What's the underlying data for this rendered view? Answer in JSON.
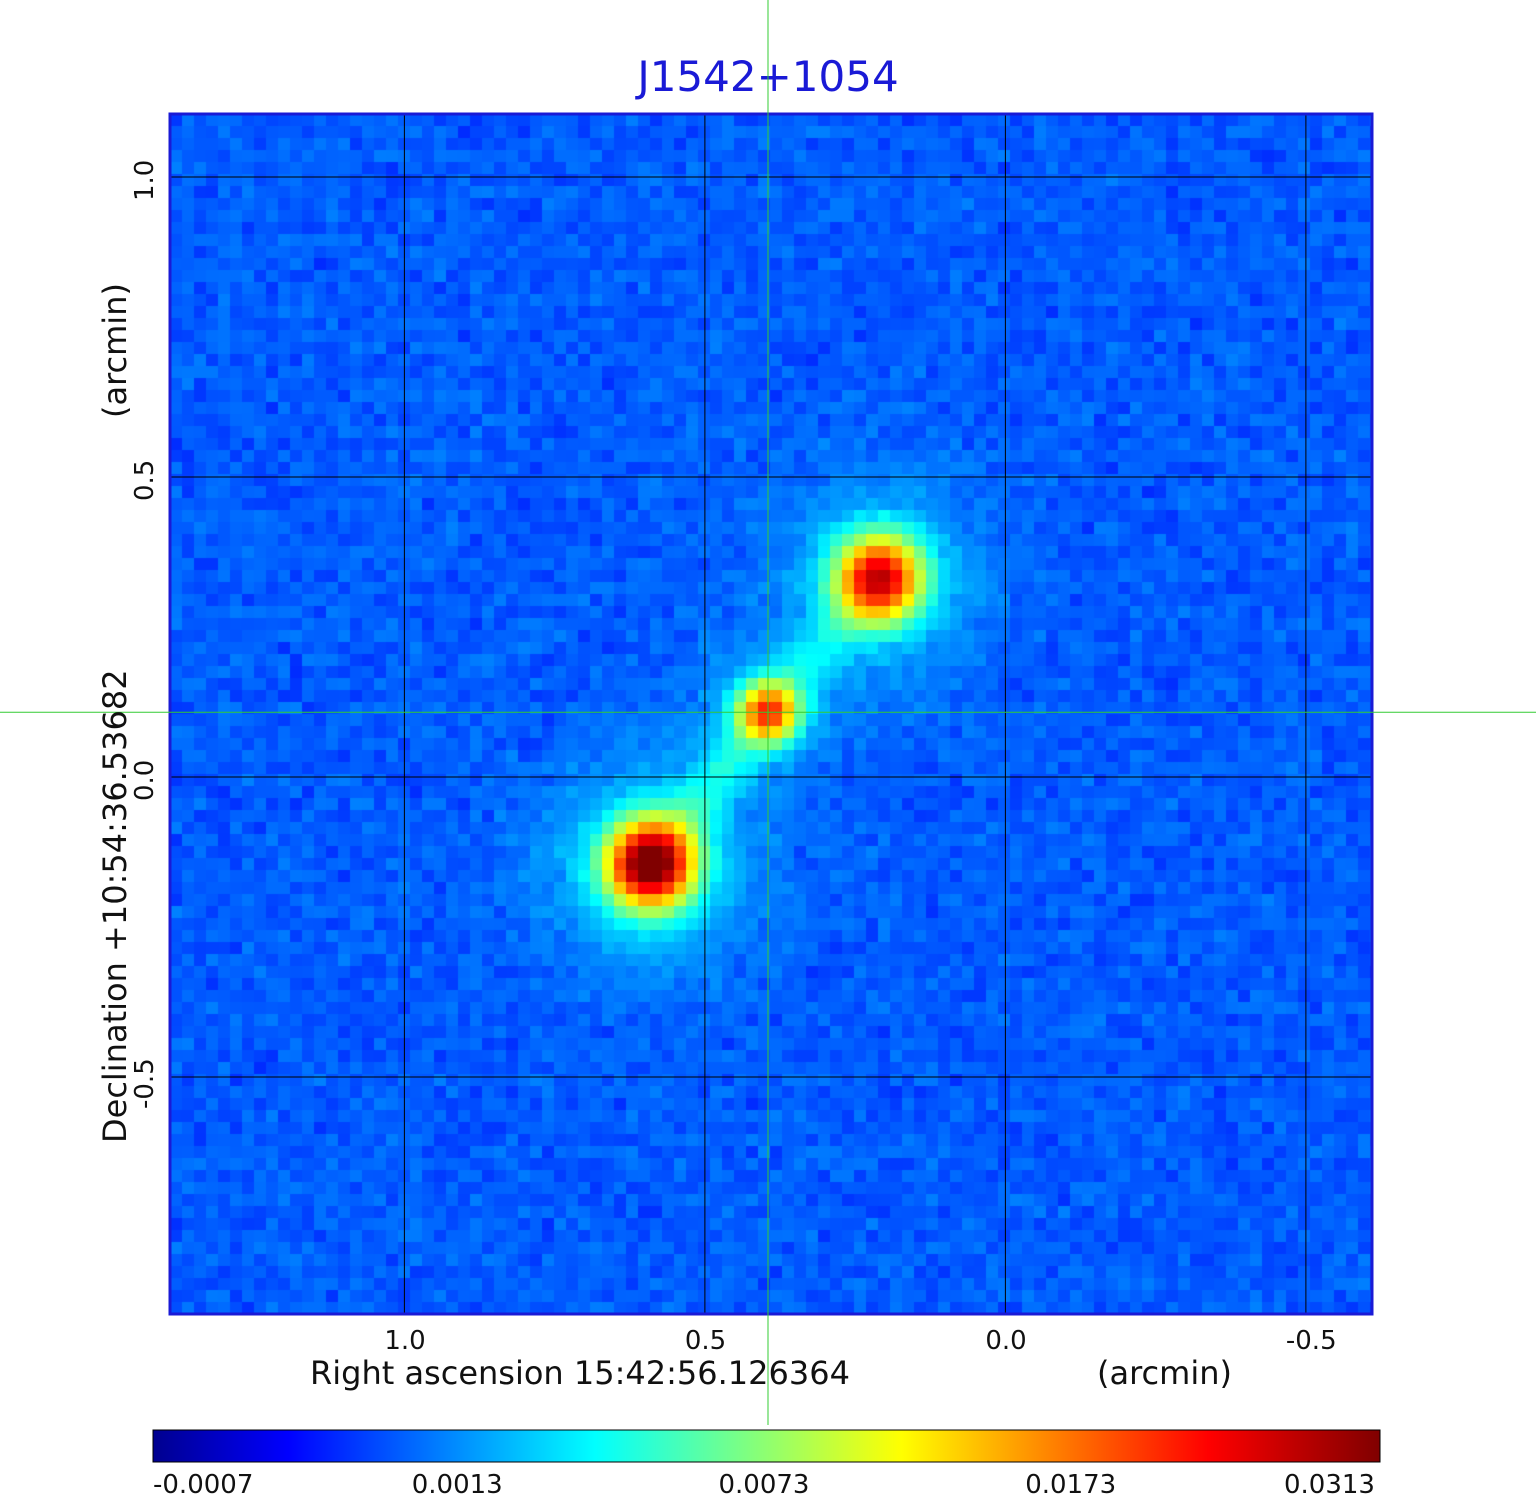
{
  "chart_data": {
    "type": "heatmap",
    "title": "J1542+1054",
    "xlabel": "Right ascension  15:42:56.126364",
    "xlabel_unit": "(arcmin)",
    "ylabel": "Declination  +10:54:36.53682",
    "ylabel_unit": "(arcmin)",
    "x_axis_reversed": true,
    "xlim": [
      1.39,
      -0.61
    ],
    "ylim": [
      -0.895,
      1.105
    ],
    "x_ticks": [
      {
        "value": 1.0,
        "label": "1.0"
      },
      {
        "value": 0.5,
        "label": "0.5"
      },
      {
        "value": 0.0,
        "label": "0.0"
      },
      {
        "value": -0.5,
        "label": "-0.5"
      }
    ],
    "y_ticks": [
      {
        "value": 1.0,
        "label": "1.0"
      },
      {
        "value": 0.5,
        "label": "0.5"
      },
      {
        "value": 0.0,
        "label": "0.0"
      },
      {
        "value": -0.5,
        "label": "-0.5"
      }
    ],
    "grid": true,
    "crosshair": {
      "x": 0.395,
      "y": 0.108
    },
    "colormap": "jet",
    "colorbar": {
      "range": [
        -0.0007,
        0.0313
      ],
      "tick_values": [
        -0.0007,
        0.0013,
        0.0073,
        0.0173,
        0.0313
      ],
      "tick_labels": [
        "-0.0007",
        "0.0013",
        "0.0073",
        "0.0173",
        "0.0313"
      ]
    },
    "noise_level": 0.0006,
    "sources": [
      {
        "x": 0.59,
        "y": -0.145,
        "peak": 0.0313,
        "sigma": 0.045
      },
      {
        "x": 0.395,
        "y": 0.108,
        "peak": 0.016,
        "sigma": 0.032
      },
      {
        "x": 0.21,
        "y": 0.33,
        "peak": 0.024,
        "sigma": 0.045
      }
    ],
    "jet_segments": [
      {
        "from": [
          0.59,
          -0.145
        ],
        "to": [
          0.395,
          0.108
        ],
        "level": 0.0028
      },
      {
        "from": [
          0.395,
          0.108
        ],
        "to": [
          0.21,
          0.33
        ],
        "level": 0.0022
      }
    ],
    "colors": {
      "title": "#1a1ad6",
      "grid": "#000000",
      "crosshair": "#33cc33",
      "frame": "#1a1ad6"
    }
  }
}
